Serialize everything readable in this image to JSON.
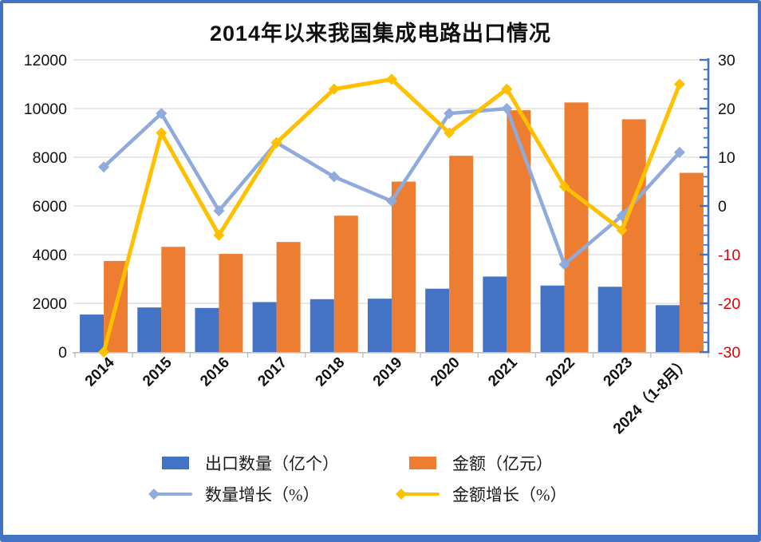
{
  "chart_data": {
    "type": "combo-bar-line",
    "title": "2014年以来我国集成电路出口情况",
    "categories": [
      "2014",
      "2015",
      "2016",
      "2017",
      "2018",
      "2019",
      "2020",
      "2021",
      "2022",
      "2023",
      "2024（1-8月）"
    ],
    "series": [
      {
        "name": "出口数量（亿个）",
        "type": "bar",
        "axis": "left",
        "color": "#4472C4",
        "values": [
          1540,
          1830,
          1810,
          2050,
          2170,
          2190,
          2600,
          3100,
          2730,
          2680,
          1925
        ]
      },
      {
        "name": "金额（亿元）",
        "type": "bar",
        "axis": "left",
        "color": "#ED7D31",
        "values": [
          3740,
          4320,
          4030,
          4520,
          5600,
          7000,
          8060,
          9930,
          10250,
          9560,
          7360
        ]
      },
      {
        "name": "数量增长（%）",
        "type": "line",
        "axis": "right",
        "color": "#8FAADC",
        "marker": "diamond",
        "values": [
          8,
          19,
          -1,
          13,
          6,
          1,
          19,
          20,
          -12,
          -2,
          11
        ]
      },
      {
        "name": "金额增长（%）",
        "type": "line",
        "axis": "right",
        "color": "#FFC000",
        "marker": "diamond",
        "values": [
          -30,
          15,
          -6,
          13,
          24,
          26,
          15,
          24,
          4,
          -5,
          25
        ]
      }
    ],
    "left_axis": {
      "min": 0,
      "max": 12000,
      "step": 2000,
      "ticks": [
        0,
        2000,
        4000,
        6000,
        8000,
        10000,
        12000
      ],
      "label_color": "#111111"
    },
    "right_axis": {
      "min": -30,
      "max": 30,
      "step": 10,
      "ticks": [
        -30,
        -20,
        -10,
        0,
        10,
        20,
        30
      ],
      "label_color": "#111111",
      "negative_label_color": "#E00000",
      "axis_color": "#4472C4"
    },
    "gridline_color": "#D9D9D9",
    "x_axis_color": "#BFBFBF",
    "legend_position": "bottom",
    "grid": true
  }
}
